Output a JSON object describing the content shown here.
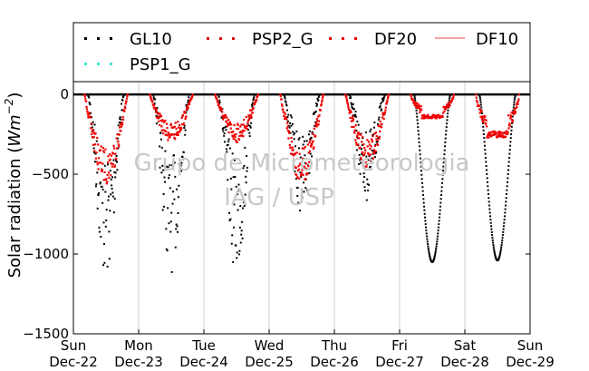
{
  "chart_data": {
    "type": "scatter",
    "title": "",
    "ylabel": "Solar radiation",
    "ylabel_unit_latex": "(Wm^{-2})",
    "ylim": [
      -1500,
      80
    ],
    "yticks": [
      0,
      -500,
      -1000,
      -1500
    ],
    "ytick_labels": [
      "0",
      "−500",
      "−1000",
      "−1500"
    ],
    "xlim_days": [
      0,
      7
    ],
    "xticks": [
      {
        "day": 0,
        "line1": "Sun",
        "line2": "Dec-22"
      },
      {
        "day": 1,
        "line1": "Mon",
        "line2": "Dec-23"
      },
      {
        "day": 2,
        "line1": "Tue",
        "line2": "Dec-24"
      },
      {
        "day": 3,
        "line1": "Wed",
        "line2": "Dec-25"
      },
      {
        "day": 4,
        "line1": "Thu",
        "line2": "Dec-26"
      },
      {
        "day": 5,
        "line1": "Fri",
        "line2": "Dec-27"
      },
      {
        "day": 6,
        "line1": "Sat",
        "line2": "Dec-28"
      },
      {
        "day": 7,
        "line1": "Sun",
        "line2": "Dec-29"
      }
    ],
    "grid": "vertical",
    "legend_placement": "top",
    "series": [
      {
        "name": "GL10",
        "style": "points",
        "color": "#000000"
      },
      {
        "name": "PSP2_G",
        "style": "points",
        "color": "#dd1111"
      },
      {
        "name": "DF20",
        "style": "points",
        "color": "#ee0000"
      },
      {
        "name": "DF10",
        "style": "line",
        "color": "#f08080"
      },
      {
        "name": "PSP1_G",
        "style": "points",
        "color": "#40e0d0"
      }
    ],
    "daily_minimum_global": [
      {
        "day": "Dec-22",
        "value": -1160
      },
      {
        "day": "Dec-23",
        "value": -1120
      },
      {
        "day": "Dec-24",
        "value": -1130
      },
      {
        "day": "Dec-25",
        "value": -750
      },
      {
        "day": "Dec-26",
        "value": -680
      },
      {
        "day": "Dec-27",
        "value": -1050
      },
      {
        "day": "Dec-28",
        "value": -1040
      }
    ],
    "daily_minimum_diffuse": [
      {
        "day": "Dec-22",
        "value": -560
      },
      {
        "day": "Dec-23",
        "value": -300
      },
      {
        "day": "Dec-24",
        "value": -300
      },
      {
        "day": "Dec-25",
        "value": -560
      },
      {
        "day": "Dec-26",
        "value": -460
      },
      {
        "day": "Dec-27",
        "value": -150
      },
      {
        "day": "Dec-28",
        "value": -270
      }
    ]
  },
  "watermark": {
    "line1": "Grupo de Micrometeorologia",
    "line2": "IAG / USP"
  }
}
